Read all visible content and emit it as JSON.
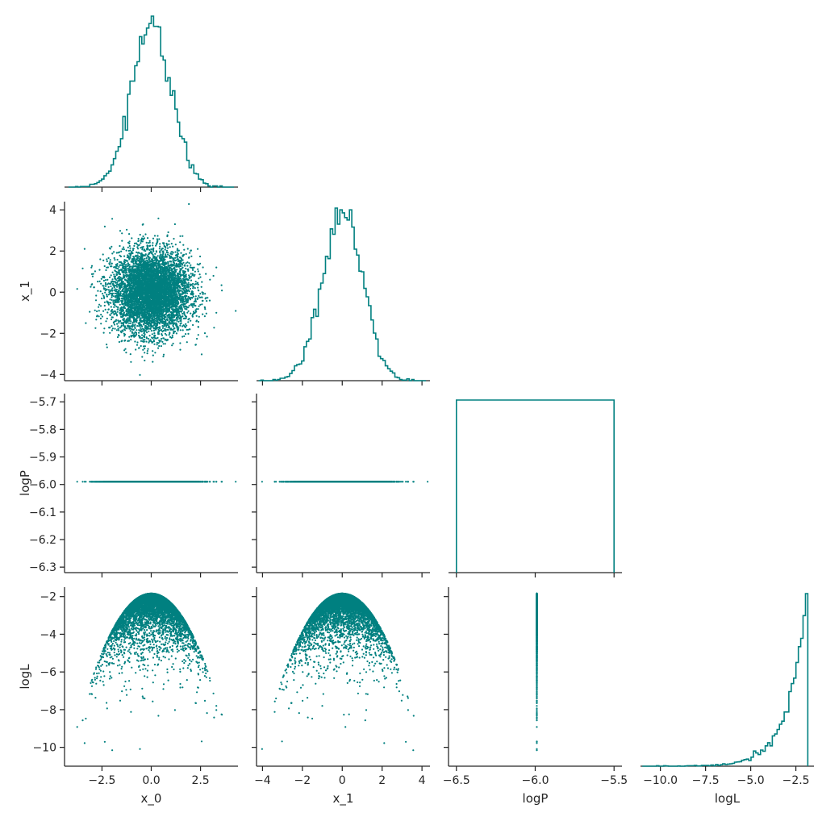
{
  "colors": {
    "series": "#008080",
    "axis": "#262626"
  },
  "chart_data": {
    "type": "scatter",
    "layout": "corner",
    "series_color": "#008080",
    "variables": [
      {
        "name": "x_0",
        "label": "x_0",
        "range": [
          -4.4,
          4.4
        ],
        "ticks": [
          -2.5,
          0.0,
          2.5
        ],
        "tick_labels": [
          "−2.5",
          "0.0",
          "2.5"
        ]
      },
      {
        "name": "x_1",
        "label": "x_1",
        "range": [
          -4.3,
          4.4
        ],
        "ticks": [
          -4,
          -2,
          0,
          2,
          4
        ],
        "tick_labels": [
          "−4",
          "−2",
          "0",
          "2",
          "4"
        ]
      },
      {
        "name": "logP",
        "label": "logP",
        "range": [
          -6.55,
          -5.45
        ],
        "ticks": [
          -6.5,
          -6.0,
          -5.5
        ],
        "tick_labels": [
          "−6.5",
          "−6.0",
          "−5.5"
        ],
        "y_range": [
          -6.32,
          -5.67
        ],
        "y_ticks": [
          -6.3,
          -6.2,
          -6.1,
          -6.0,
          -5.9,
          -5.8,
          -5.7
        ],
        "y_tick_labels": [
          "−6.3",
          "−6.2",
          "−6.1",
          "−6.0",
          "−5.9",
          "−5.8",
          "−5.7"
        ]
      },
      {
        "name": "logL",
        "label": "logL",
        "range": [
          -11.1,
          -1.5
        ],
        "ticks": [
          -10.0,
          -7.5,
          -5.0,
          -2.5
        ],
        "tick_labels": [
          "−10.0",
          "−7.5",
          "−5.0",
          "−2.5"
        ],
        "y_range": [
          -11.0,
          -1.5
        ],
        "y_ticks": [
          -10,
          -8,
          -6,
          -4,
          -2
        ],
        "y_tick_labels": [
          "−10",
          "−8",
          "−6",
          "−4",
          "−2"
        ]
      }
    ],
    "samples": {
      "distribution": "standard normal in x_0 and x_1",
      "logP_constant": -5.99,
      "logL_max": -1.84,
      "logL_formula": "logL = -1.84 - 0.5 * (x_0^2 + x_1^2)"
    },
    "histograms": {
      "x_0": {
        "peak_at": 0.0,
        "style": "step"
      },
      "x_1": {
        "peak_at": 0.1,
        "style": "step"
      },
      "logP": {
        "edges": [
          -6.5,
          -5.5
        ],
        "style": "step-box"
      },
      "logL": {
        "peak_at": -1.9,
        "cutoff": -1.84,
        "style": "step"
      }
    },
    "xlabel": "",
    "ylabel": "",
    "grid": false,
    "legend": "none"
  }
}
